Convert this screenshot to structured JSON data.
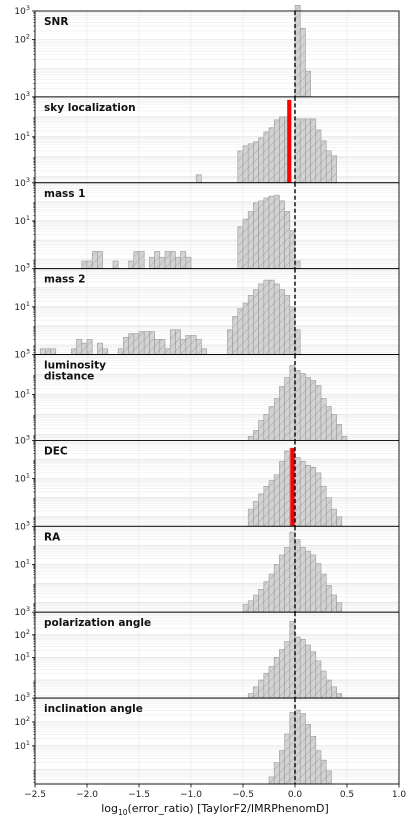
{
  "chart_data": {
    "type": "bar",
    "xlabel_main": "log",
    "xlabel_sub": "10",
    "xlabel_rest": "(error_ratio) [TaylorF2/IMRPhenomD]",
    "xlim": [
      -2.5,
      1.0
    ],
    "xticks": [
      -2.5,
      -2.0,
      -1.5,
      -1.0,
      -0.5,
      0.0,
      0.5,
      1.0
    ],
    "xtick_labels": [
      "−2.5",
      "−2.0",
      "−1.5",
      "−1.0",
      "−0.5",
      "0.0",
      "0.5",
      "1.0"
    ],
    "bin_width": 0.05,
    "yscale": "log",
    "reference_line_x": 0.0,
    "colors": {
      "hist_fill": "#d3d3d3",
      "hist_edge": "#9a9a9a",
      "hatch": "#9a9a9a",
      "marker": "#ff0000",
      "refline": "#000000"
    },
    "panels": [
      {
        "title_lines": [
          "SNR"
        ],
        "ylim_exp": [
          0,
          3
        ],
        "ytick_exps": [
          2
        ],
        "top_label_exp": 3,
        "bins": [
          [
            0.0,
            3.2
          ],
          [
            0.05,
            2.4
          ],
          [
            0.1,
            0.9
          ]
        ],
        "marker": null
      },
      {
        "title_lines": [
          "sky localization"
        ],
        "ylim_exp": [
          -1.3,
          3
        ],
        "ytick_exps": [
          1
        ],
        "top_label_exp": 3,
        "bins": [
          [
            -0.95,
            -0.9
          ],
          [
            -0.55,
            0.3
          ],
          [
            -0.5,
            0.55
          ],
          [
            -0.45,
            0.65
          ],
          [
            -0.4,
            0.75
          ],
          [
            -0.35,
            0.95
          ],
          [
            -0.3,
            1.25
          ],
          [
            -0.25,
            1.45
          ],
          [
            -0.2,
            1.85
          ],
          [
            -0.15,
            2.0
          ],
          [
            -0.1,
            2.0
          ],
          [
            0.0,
            1.9
          ],
          [
            0.05,
            1.9
          ],
          [
            0.1,
            1.9
          ],
          [
            0.15,
            1.9
          ],
          [
            0.2,
            1.35
          ],
          [
            0.25,
            0.8
          ],
          [
            0.3,
            0.3
          ],
          [
            0.35,
            0.05
          ]
        ],
        "marker": {
          "x0": -0.075,
          "x1": -0.035,
          "top_exp": 2.85
        }
      },
      {
        "title_lines": [
          "mass 1"
        ],
        "ylim_exp": [
          -1.5,
          3
        ],
        "ytick_exps": [
          1
        ],
        "top_label_exp": 3,
        "bins": [
          [
            -2.05,
            -1.1
          ],
          [
            -2.0,
            -1.1
          ],
          [
            -1.95,
            -0.6
          ],
          [
            -1.9,
            -0.6
          ],
          [
            -1.75,
            -1.1
          ],
          [
            -1.6,
            -1.1
          ],
          [
            -1.55,
            -0.6
          ],
          [
            -1.5,
            -0.6
          ],
          [
            -1.4,
            -0.9
          ],
          [
            -1.35,
            -0.6
          ],
          [
            -1.3,
            -0.9
          ],
          [
            -1.25,
            -0.6
          ],
          [
            -1.2,
            -0.6
          ],
          [
            -1.15,
            -0.9
          ],
          [
            -1.1,
            -0.6
          ],
          [
            -1.05,
            -0.9
          ],
          [
            -0.55,
            0.7
          ],
          [
            -0.5,
            1.1
          ],
          [
            -0.45,
            1.5
          ],
          [
            -0.4,
            1.95
          ],
          [
            -0.35,
            2.05
          ],
          [
            -0.3,
            2.2
          ],
          [
            -0.25,
            2.3
          ],
          [
            -0.2,
            2.35
          ],
          [
            -0.15,
            2.05
          ],
          [
            -0.1,
            1.5
          ],
          [
            -0.05,
            0.5
          ],
          [
            0.0,
            -1.1
          ]
        ],
        "marker": null
      },
      {
        "title_lines": [
          "mass 2"
        ],
        "ylim_exp": [
          -1.5,
          3
        ],
        "ytick_exps": [
          1
        ],
        "top_label_exp": 3,
        "bins": [
          [
            -2.45,
            -1.2
          ],
          [
            -2.4,
            -1.2
          ],
          [
            -2.35,
            -1.2
          ],
          [
            -2.15,
            -1.2
          ],
          [
            -2.1,
            -0.7
          ],
          [
            -2.05,
            -0.9
          ],
          [
            -2.0,
            -0.7
          ],
          [
            -1.9,
            -0.9
          ],
          [
            -1.85,
            -1.2
          ],
          [
            -1.7,
            -1.2
          ],
          [
            -1.65,
            -0.6
          ],
          [
            -1.6,
            -0.4
          ],
          [
            -1.55,
            -0.4
          ],
          [
            -1.5,
            -0.3
          ],
          [
            -1.45,
            -0.3
          ],
          [
            -1.4,
            -0.3
          ],
          [
            -1.35,
            -0.7
          ],
          [
            -1.3,
            -0.7
          ],
          [
            -1.25,
            -1.2
          ],
          [
            -1.2,
            -0.2
          ],
          [
            -1.15,
            -0.2
          ],
          [
            -1.1,
            -0.7
          ],
          [
            -1.05,
            -0.5
          ],
          [
            -1.0,
            -0.5
          ],
          [
            -0.95,
            -0.7
          ],
          [
            -0.9,
            -1.2
          ],
          [
            -0.65,
            -0.2
          ],
          [
            -0.6,
            0.5
          ],
          [
            -0.55,
            0.9
          ],
          [
            -0.5,
            1.2
          ],
          [
            -0.45,
            1.6
          ],
          [
            -0.4,
            1.9
          ],
          [
            -0.35,
            2.2
          ],
          [
            -0.3,
            2.4
          ],
          [
            -0.25,
            2.4
          ],
          [
            -0.2,
            2.2
          ],
          [
            -0.15,
            1.9
          ],
          [
            -0.1,
            1.6
          ],
          [
            -0.05,
            1.0
          ],
          [
            0.0,
            -0.2
          ]
        ],
        "marker": null
      },
      {
        "title_lines": [
          "luminosity",
          "distance"
        ],
        "ylim_exp": [
          -1.3,
          3
        ],
        "ytick_exps": [
          1
        ],
        "top_label_exp": 3,
        "bins": [
          [
            -0.45,
            -1.1
          ],
          [
            -0.4,
            -0.8
          ],
          [
            -0.35,
            -0.3
          ],
          [
            -0.3,
            0.0
          ],
          [
            -0.25,
            0.4
          ],
          [
            -0.2,
            0.8
          ],
          [
            -0.15,
            1.4
          ],
          [
            -0.1,
            1.85
          ],
          [
            -0.05,
            2.45
          ],
          [
            0.0,
            2.2
          ],
          [
            0.05,
            2.05
          ],
          [
            0.1,
            1.85
          ],
          [
            0.15,
            1.7
          ],
          [
            0.2,
            1.45
          ],
          [
            0.25,
            0.8
          ],
          [
            0.3,
            0.4
          ],
          [
            0.35,
            0.0
          ],
          [
            0.4,
            -0.5
          ],
          [
            0.45,
            -1.1
          ]
        ],
        "marker": null
      },
      {
        "title_lines": [
          "DEC"
        ],
        "ylim_exp": [
          -1.5,
          3
        ],
        "ytick_exps": [
          1
        ],
        "top_label_exp": 3,
        "bins": [
          [
            -0.45,
            -0.6
          ],
          [
            -0.4,
            -0.2
          ],
          [
            -0.35,
            0.2
          ],
          [
            -0.3,
            0.6
          ],
          [
            -0.25,
            0.9
          ],
          [
            -0.2,
            1.2
          ],
          [
            -0.15,
            1.9
          ],
          [
            -0.1,
            2.45
          ],
          [
            -0.05,
            2.6
          ],
          [
            0.0,
            2.1
          ],
          [
            0.05,
            1.9
          ],
          [
            0.1,
            1.7
          ],
          [
            0.15,
            1.6
          ],
          [
            0.2,
            1.3
          ],
          [
            0.25,
            0.6
          ],
          [
            0.3,
            0.0
          ],
          [
            0.35,
            -0.6
          ],
          [
            0.4,
            -1.0
          ]
        ],
        "marker": {
          "x0": -0.045,
          "x1": -0.005,
          "top_exp": 2.6
        }
      },
      {
        "title_lines": [
          "RA"
        ],
        "ylim_exp": [
          -1.5,
          3
        ],
        "ytick_exps": [
          1
        ],
        "top_label_exp": 3,
        "bins": [
          [
            -0.5,
            -1.1
          ],
          [
            -0.45,
            -0.9
          ],
          [
            -0.4,
            -0.6
          ],
          [
            -0.35,
            -0.3
          ],
          [
            -0.3,
            0.1
          ],
          [
            -0.25,
            0.5
          ],
          [
            -0.2,
            1.0
          ],
          [
            -0.15,
            1.5
          ],
          [
            -0.1,
            1.9
          ],
          [
            -0.05,
            2.7
          ],
          [
            0.0,
            2.3
          ],
          [
            0.05,
            1.9
          ],
          [
            0.1,
            1.7
          ],
          [
            0.15,
            1.5
          ],
          [
            0.2,
            1.05
          ],
          [
            0.25,
            0.5
          ],
          [
            0.3,
            -0.1
          ],
          [
            0.35,
            -0.6
          ],
          [
            0.4,
            -1.0
          ]
        ],
        "marker": null
      },
      {
        "title_lines": [
          "polarization angle"
        ],
        "ylim_exp": [
          -0.8,
          3
        ],
        "ytick_exps": [
          1,
          2
        ],
        "top_label_exp": 3,
        "bins": [
          [
            -0.45,
            -0.6
          ],
          [
            -0.4,
            -0.3
          ],
          [
            -0.35,
            0.0
          ],
          [
            -0.3,
            0.3
          ],
          [
            -0.25,
            0.6
          ],
          [
            -0.2,
            1.0
          ],
          [
            -0.15,
            1.35
          ],
          [
            -0.1,
            1.7
          ],
          [
            -0.05,
            2.6
          ],
          [
            0.0,
            1.9
          ],
          [
            0.05,
            1.8
          ],
          [
            0.1,
            1.55
          ],
          [
            0.15,
            1.25
          ],
          [
            0.2,
            0.85
          ],
          [
            0.25,
            0.4
          ],
          [
            0.3,
            0.0
          ],
          [
            0.35,
            -0.3
          ],
          [
            0.4,
            -0.6
          ]
        ],
        "marker": null
      },
      {
        "title_lines": [
          "inclination angle"
        ],
        "ylim_exp": [
          -0.6,
          3
        ],
        "ytick_exps": [
          1,
          2
        ],
        "top_label_exp": 3,
        "bins": [
          [
            -0.25,
            -0.3
          ],
          [
            -0.2,
            0.3
          ],
          [
            -0.15,
            0.8
          ],
          [
            -0.1,
            1.5
          ],
          [
            -0.05,
            2.4
          ],
          [
            0.0,
            2.5
          ],
          [
            0.05,
            2.35
          ],
          [
            0.1,
            1.9
          ],
          [
            0.15,
            1.4
          ],
          [
            0.2,
            0.8
          ],
          [
            0.25,
            0.4
          ],
          [
            0.3,
            -0.05
          ]
        ],
        "marker": null
      }
    ]
  }
}
